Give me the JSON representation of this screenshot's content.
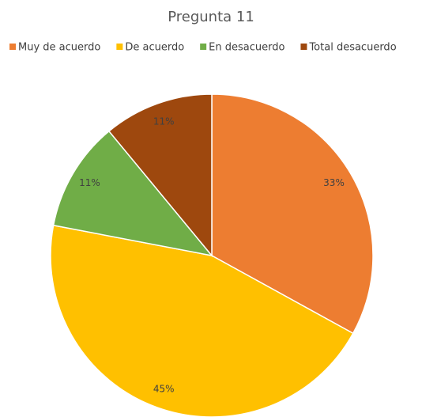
{
  "chart_data": {
    "type": "pie",
    "title": "Pregunta 11",
    "categories": [
      "Muy de acuerdo",
      "De acuerdo",
      "En desacuerdo",
      "Total desacuerdo"
    ],
    "values": [
      33,
      45,
      11,
      11
    ],
    "value_labels": [
      "33%",
      "45%",
      "11%",
      "11%"
    ],
    "colors": [
      "#ED7D31",
      "#FFC000",
      "#70AD47",
      "#9E480E"
    ],
    "legend": "top"
  }
}
